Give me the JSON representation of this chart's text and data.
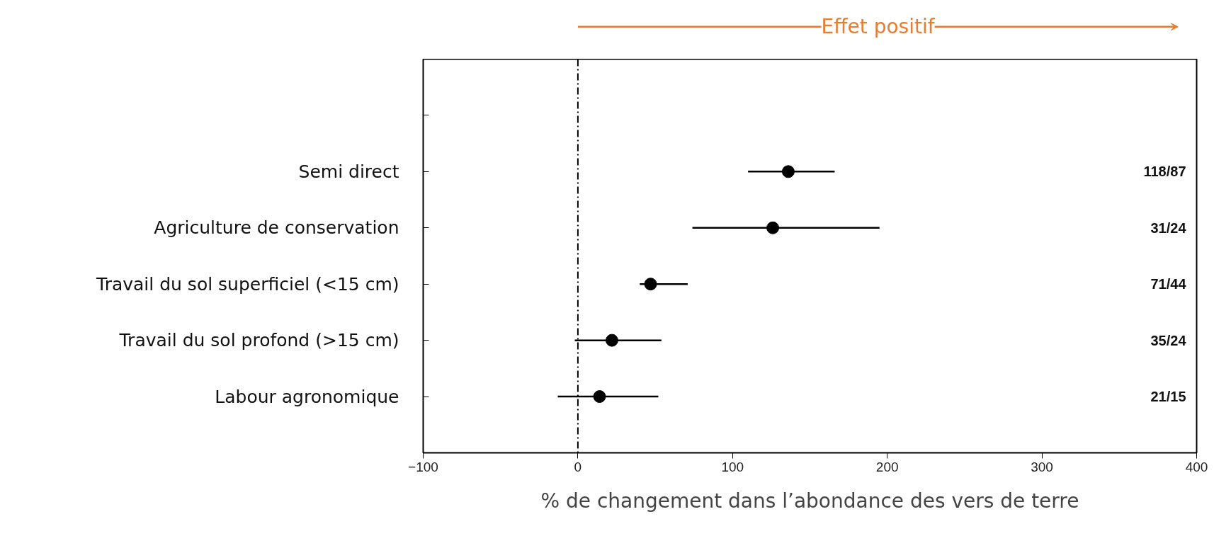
{
  "chart_data": {
    "type": "scatter",
    "orientation": "horizontal",
    "categories": [
      null,
      "Semi direct",
      "Agriculture de conservation",
      "Travail du sol superficiel (<15 cm)",
      "Travail du sol profond (>15 cm)",
      "Labour agronomique"
    ],
    "values": [
      null,
      136,
      126,
      47,
      22,
      14
    ],
    "errors": [
      null,
      [
        110,
        166
      ],
      [
        74,
        195
      ],
      [
        40,
        71
      ],
      [
        -2,
        54
      ],
      [
        -13,
        52
      ]
    ],
    "color": "#000000",
    "marker": "circle",
    "xlabel": "% de changement dans l’abondance des vers de terre",
    "xlim": [
      -100,
      400
    ],
    "xticks": [
      {
        "value": -100,
        "label": "−100"
      },
      0,
      100,
      200,
      300,
      400
    ],
    "grid": false,
    "legend": false,
    "ref_lines": [
      {
        "axis": "x",
        "value": 0,
        "label": null,
        "color": "#000000",
        "line_style": "dashed"
      }
    ],
    "annotations": [
      "118/87",
      "31/24",
      "71/44",
      "35/24",
      "21/15",
      "Effet positif"
    ]
  }
}
